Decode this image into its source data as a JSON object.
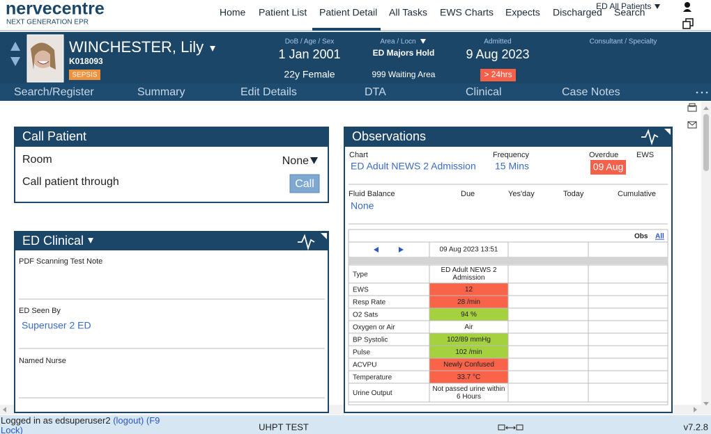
{
  "header": {
    "logo": "nervecentre",
    "tagline": "NEXT GENERATION EPR",
    "nav": [
      "Home",
      "Patient List",
      "Patient Detail",
      "All Tasks",
      "EWS Charts",
      "Expects",
      "Discharged"
    ],
    "patient_filter": "ED All Patients",
    "search": "Search"
  },
  "patient": {
    "name": "WINCHESTER, Lily",
    "id": "K018093",
    "alert": "SEPSIS",
    "dob_label": "DoB / Age / Sex",
    "dob": "1 Jan 2001",
    "age_sex": "22y Female",
    "area_label": "Area / Locn",
    "area": "ED Majors Hold",
    "location": "999 Waiting Area",
    "admitted_label": "Admitted",
    "admitted": "9 Aug 2023",
    "admitted_flag": "> 24hrs",
    "consultant_label": "Consultant / Specialty"
  },
  "tabs": [
    "Search/Register",
    "Summary",
    "Edit Details",
    "DTA",
    "Clinical",
    "Case Notes"
  ],
  "call_patient": {
    "title": "Call Patient",
    "room_label": "Room",
    "room_value": "None",
    "through_label": "Call patient through",
    "button": "Call"
  },
  "ed_clinical": {
    "title": "ED Clinical",
    "fields": [
      {
        "label": "PDF Scanning Test Note"
      },
      {
        "label": "ED Seen By",
        "value": "Superuser 2 ED"
      },
      {
        "label": "Named Nurse"
      }
    ]
  },
  "observations": {
    "title": "Observations",
    "chart_label": "Chart",
    "chart": "ED Adult NEWS 2 Admission",
    "frequency_label": "Frequency",
    "frequency": "15 Mins",
    "overdue_label": "Overdue",
    "overdue": "09 Aug",
    "ews_label": "EWS",
    "fluid_label": "Fluid Balance",
    "fluid_columns": [
      "Due",
      "Yes'day",
      "Today",
      "Cumulative"
    ],
    "fluid_value": "None",
    "obs_label": "Obs",
    "all_link": "All",
    "date": "09 Aug 2023 13:51",
    "rows": [
      {
        "label": "Type",
        "value": "ED Adult NEWS 2 Admission",
        "color": "#ffffff"
      },
      {
        "label": "EWS",
        "value": "12",
        "color": "#f9634a"
      },
      {
        "label": "Resp Rate",
        "value": "28 /min",
        "color": "#f9634a"
      },
      {
        "label": "O2 Sats",
        "value": "94 %",
        "color": "#a6d13f"
      },
      {
        "label": "Oxygen or Air",
        "value": "Air",
        "color": "#ffffff"
      },
      {
        "label": "BP Systolic",
        "value": "102/89 mmHg",
        "color": "#a6d13f"
      },
      {
        "label": "Pulse",
        "value": "102 /min",
        "color": "#a6d13f"
      },
      {
        "label": "ACVPU",
        "value": "Newly Confused",
        "color": "#f9634a"
      },
      {
        "label": "Temperature",
        "value": "33.7 °C",
        "color": "#f9634a"
      },
      {
        "label": "Urine Output",
        "value": "Not passed urine within 6 Hours",
        "color": "#ffffff"
      }
    ]
  },
  "footer": {
    "user": "Logged in as edsuperuser2",
    "logout": "(logout)",
    "lock": "(F9 Lock)",
    "environment": "UHPT TEST",
    "version": "v7.2.8"
  }
}
